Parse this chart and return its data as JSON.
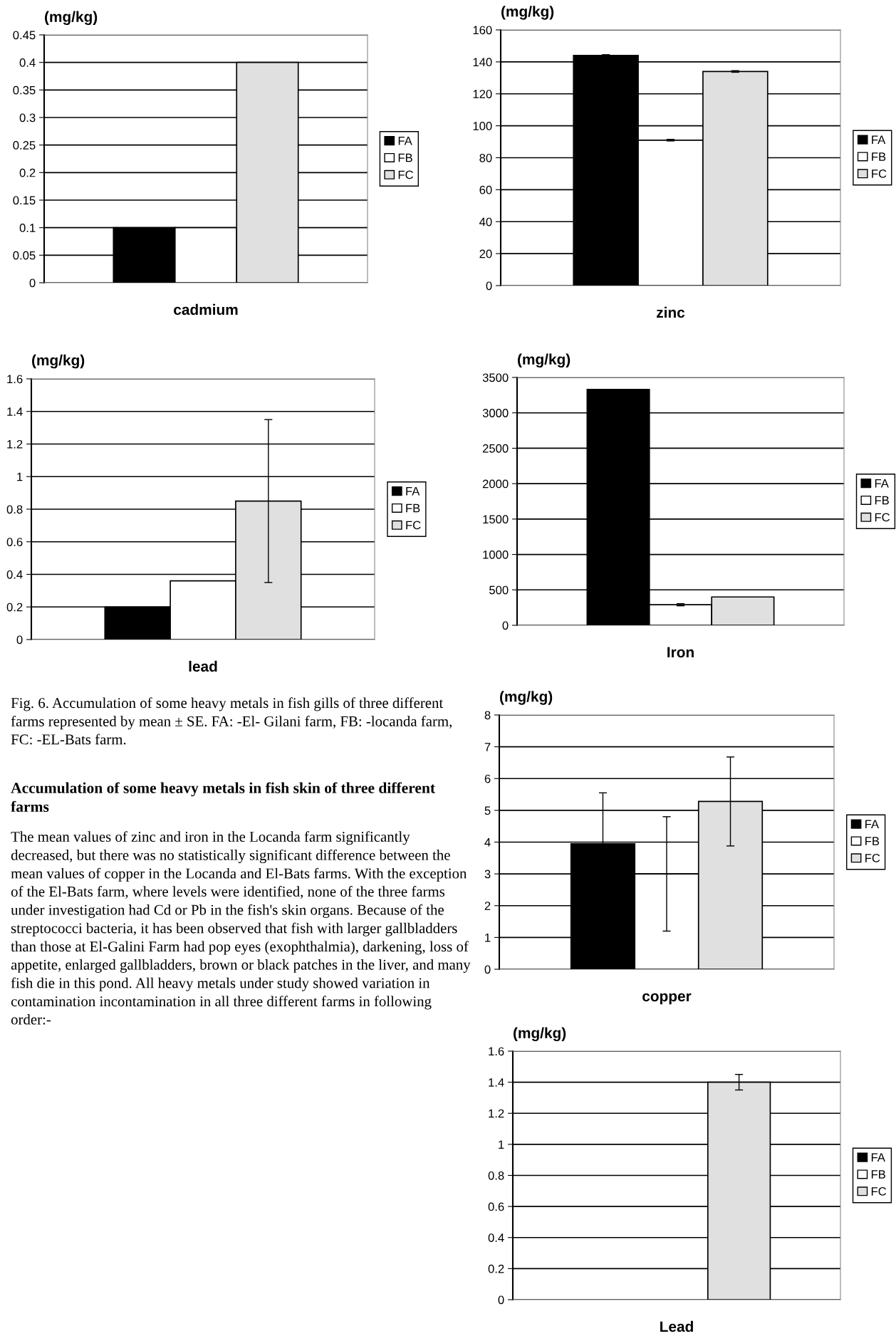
{
  "chart_data": [
    {
      "type": "bar",
      "xlabel": "cadmium",
      "ylabel": "(mg/kg)",
      "categories": [
        null
      ],
      "ylim": [
        0,
        0.45
      ],
      "yticks": [
        0,
        0.05,
        0.1,
        0.15,
        0.2,
        0.25,
        0.3,
        0.35,
        0.4,
        0.45
      ],
      "grid": "y",
      "legend": "right",
      "series": [
        {
          "name": "FA",
          "color": "#000000",
          "values": [
            0.1
          ]
        },
        {
          "name": "FB",
          "color": "#ffffff",
          "values": [
            0.1
          ]
        },
        {
          "name": "FC",
          "color": "#e0e0e0",
          "values": [
            0.4
          ]
        }
      ]
    },
    {
      "type": "bar",
      "xlabel": "zinc",
      "ylabel": "(mg/kg)",
      "categories": [
        null
      ],
      "ylim": [
        0,
        160
      ],
      "yticks": [
        0,
        20,
        40,
        60,
        80,
        100,
        120,
        140,
        160
      ],
      "grid": "y",
      "legend": "right",
      "series": [
        {
          "name": "FA",
          "color": "#000000",
          "values": [
            144
          ],
          "errors": [
            0.5
          ]
        },
        {
          "name": "FB",
          "color": "#ffffff",
          "values": [
            91
          ],
          "errors": [
            0.5
          ]
        },
        {
          "name": "FC",
          "color": "#e0e0e0",
          "values": [
            134
          ],
          "errors": [
            0.5
          ]
        }
      ]
    },
    {
      "type": "bar",
      "xlabel": "lead",
      "ylabel": "(mg/kg)",
      "categories": [
        null
      ],
      "ylim": [
        0,
        1.6
      ],
      "yticks": [
        0,
        0.2,
        0.4,
        0.6,
        0.8,
        1,
        1.2,
        1.4,
        1.6
      ],
      "grid": "y",
      "legend": "right",
      "series": [
        {
          "name": "FA",
          "color": "#000000",
          "values": [
            0.2
          ]
        },
        {
          "name": "FB",
          "color": "#ffffff",
          "values": [
            0.36
          ]
        },
        {
          "name": "FC",
          "color": "#e0e0e0",
          "values": [
            0.85
          ],
          "errors": [
            0.5
          ]
        }
      ],
      "annotations": [
        "Fig. 6. Accumulation of some heavy metals in fish gills of three different farms represented by mean ± SE. FA: -El- Gilani farm, FB: -locanda farm, FC: -EL-Bats farm.",
        "Accumulation of some heavy metals in fish skin of three different farms",
        "The mean values of zinc and iron in the Locanda farm significantly decreased, but there was no statistically significant difference between the mean values of copper in the Locanda and El-Bats farms. With the exception of the El-Bats farm, where levels were identified, none of the three farms under investigation had Cd or Pb in the fish's skin organs. Because of the streptococci bacteria, it has been observed that fish with larger gallbladders than those at El-Galini Farm had pop eyes (exophthalmia), darkening, loss of appetite, enlarged gallbladders, brown or black patches in the liver, and many fish die in this pond. All heavy metals under study showed variation in contamination incontamination in all three different farms in following order:-"
      ]
    },
    {
      "type": "bar",
      "xlabel": "Iron",
      "ylabel": "(mg/kg)",
      "categories": [
        null
      ],
      "ylim": [
        0,
        3500
      ],
      "yticks": [
        0,
        500,
        1000,
        1500,
        2000,
        2500,
        3000,
        3500
      ],
      "grid": "y",
      "legend": "right",
      "series": [
        {
          "name": "FA",
          "color": "#000000",
          "values": [
            3330
          ]
        },
        {
          "name": "FB",
          "color": "#ffffff",
          "values": [
            290
          ],
          "errors": [
            15
          ]
        },
        {
          "name": "FC",
          "color": "#e0e0e0",
          "values": [
            400
          ]
        }
      ]
    },
    {
      "type": "bar",
      "xlabel": "copper",
      "ylabel": "(mg/kg)",
      "categories": [
        null
      ],
      "ylim": [
        0,
        8
      ],
      "yticks": [
        0,
        1,
        2,
        3,
        4,
        5,
        6,
        7,
        8
      ],
      "grid": "y",
      "legend": "right",
      "series": [
        {
          "name": "FA",
          "color": "#000000",
          "values": [
            3.95
          ],
          "errors": [
            1.6
          ]
        },
        {
          "name": "FB",
          "color": "#ffffff",
          "values": [
            3.0
          ],
          "errors": [
            1.8
          ]
        },
        {
          "name": "FC",
          "color": "#e0e0e0",
          "values": [
            5.28
          ],
          "errors": [
            1.4
          ]
        }
      ]
    },
    {
      "type": "bar",
      "xlabel": "Lead",
      "ylabel": "(mg/kg)",
      "categories": [
        null
      ],
      "ylim": [
        0,
        1.6
      ],
      "yticks": [
        0,
        0.2,
        0.4,
        0.6,
        0.8,
        1,
        1.2,
        1.4,
        1.6
      ],
      "grid": "y",
      "legend": "right",
      "series": [
        {
          "name": "FA",
          "color": "#000000",
          "values": [
            null
          ]
        },
        {
          "name": "FB",
          "color": "#ffffff",
          "values": [
            null
          ]
        },
        {
          "name": "FC",
          "color": "#e0e0e0",
          "values": [
            1.4
          ],
          "errors": [
            0.05
          ]
        }
      ]
    }
  ]
}
